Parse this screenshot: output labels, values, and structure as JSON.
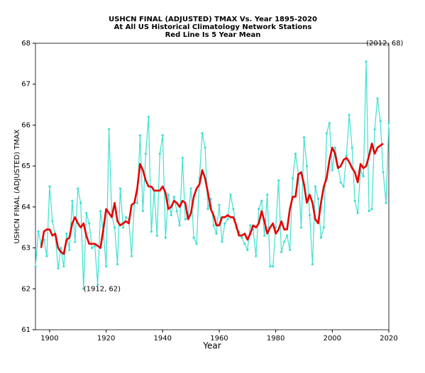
{
  "chart_data": {
    "type": "line",
    "title": [
      "USHCN FINAL (ADJUSTED) TMAX Vs. Year 1895-2020",
      "At All US Historical Climatology Network Stations",
      "Red Line Is 5 Year Mean"
    ],
    "x_label": "Year",
    "y_label": "USHCN FINAL (ADJUSTED) TMAX",
    "xlim": [
      1895,
      2020
    ],
    "ylim": [
      61,
      68
    ],
    "xticks": [
      1900,
      1920,
      1940,
      1960,
      1980,
      2000,
      2020
    ],
    "yticks": [
      61,
      62,
      63,
      64,
      65,
      66,
      67,
      68
    ],
    "x": [
      1895,
      1896,
      1897,
      1898,
      1899,
      1900,
      1901,
      1902,
      1903,
      1904,
      1905,
      1906,
      1907,
      1908,
      1909,
      1910,
      1911,
      1912,
      1913,
      1914,
      1915,
      1916,
      1917,
      1918,
      1919,
      1920,
      1921,
      1922,
      1923,
      1924,
      1925,
      1926,
      1927,
      1928,
      1929,
      1930,
      1931,
      1932,
      1933,
      1934,
      1935,
      1936,
      1937,
      1938,
      1939,
      1940,
      1941,
      1942,
      1943,
      1944,
      1945,
      1946,
      1947,
      1948,
      1949,
      1950,
      1951,
      1952,
      1953,
      1954,
      1955,
      1956,
      1957,
      1958,
      1959,
      1960,
      1961,
      1962,
      1963,
      1964,
      1965,
      1966,
      1967,
      1968,
      1969,
      1970,
      1971,
      1972,
      1973,
      1974,
      1975,
      1976,
      1977,
      1978,
      1979,
      1980,
      1981,
      1982,
      1983,
      1984,
      1985,
      1986,
      1987,
      1988,
      1989,
      1990,
      1991,
      1992,
      1993,
      1994,
      1995,
      1996,
      1997,
      1998,
      1999,
      2000,
      2001,
      2002,
      2003,
      2004,
      2005,
      2006,
      2007,
      2008,
      2009,
      2010,
      2011,
      2012,
      2013,
      2014,
      2015,
      2016,
      2017,
      2018,
      2019,
      2020
    ],
    "series": [
      {
        "color": "#40e0d0",
        "markers": true,
        "values": [
          62.55,
          63.4,
          63.1,
          63.2,
          62.8,
          64.5,
          63.65,
          63.3,
          62.5,
          63.0,
          62.55,
          63.35,
          62.95,
          64.15,
          63.15,
          64.45,
          64.1,
          62.0,
          63.85,
          63.6,
          63.0,
          63.05,
          62.1,
          63.9,
          63.4,
          62.55,
          65.9,
          63.8,
          63.5,
          62.6,
          64.45,
          63.5,
          63.75,
          63.7,
          62.8,
          64.1,
          64.1,
          65.75,
          63.9,
          65.3,
          66.2,
          63.4,
          64.4,
          63.3,
          65.3,
          65.75,
          63.25,
          64.3,
          63.8,
          64.25,
          63.9,
          63.55,
          65.2,
          63.7,
          63.75,
          64.45,
          63.25,
          63.1,
          64.7,
          65.8,
          65.45,
          63.95,
          64.2,
          63.55,
          63.35,
          64.05,
          63.15,
          63.6,
          63.7,
          64.3,
          63.95,
          63.5,
          63.4,
          63.25,
          63.1,
          62.95,
          63.55,
          63.45,
          62.8,
          63.95,
          64.15,
          63.3,
          64.3,
          62.55,
          62.55,
          63.5,
          64.65,
          62.9,
          63.15,
          63.3,
          62.95,
          64.7,
          65.3,
          64.8,
          63.5,
          65.7,
          65.0,
          63.8,
          62.6,
          64.5,
          64.2,
          63.25,
          63.5,
          65.8,
          66.05,
          64.9,
          65.45,
          65.0,
          64.6,
          64.5,
          65.25,
          66.25,
          65.45,
          64.15,
          63.85,
          64.9,
          64.75,
          67.55,
          63.9,
          63.95,
          65.9,
          66.65,
          66.1,
          64.85,
          64.1,
          66.05
        ]
      },
      {
        "color": "#e60000",
        "markers": false,
        "values": [
          null,
          null,
          63.0,
          63.4,
          63.45,
          63.45,
          63.3,
          63.35,
          63.0,
          62.9,
          62.85,
          63.2,
          63.25,
          63.6,
          63.75,
          63.6,
          63.5,
          63.6,
          63.3,
          63.1,
          63.1,
          63.1,
          63.05,
          63.0,
          63.45,
          63.95,
          63.85,
          63.75,
          64.1,
          63.65,
          63.55,
          63.6,
          63.65,
          63.6,
          64.05,
          64.1,
          64.45,
          65.05,
          64.9,
          64.65,
          64.5,
          64.5,
          64.4,
          64.4,
          64.4,
          64.5,
          64.35,
          63.95,
          64.0,
          64.15,
          64.1,
          64.0,
          64.15,
          64.1,
          63.7,
          63.85,
          64.25,
          64.45,
          64.55,
          64.9,
          64.7,
          64.35,
          63.95,
          63.8,
          63.55,
          63.55,
          63.75,
          63.75,
          63.8,
          63.75,
          63.75,
          63.55,
          63.3,
          63.3,
          63.35,
          63.2,
          63.35,
          63.55,
          63.5,
          63.6,
          63.9,
          63.65,
          63.35,
          63.5,
          63.6,
          63.35,
          63.45,
          63.65,
          63.45,
          63.45,
          63.95,
          64.25,
          64.25,
          64.8,
          64.85,
          64.55,
          64.1,
          64.3,
          64.1,
          63.7,
          63.6,
          64.1,
          64.5,
          64.7,
          65.15,
          65.45,
          65.3,
          64.95,
          65.0,
          65.15,
          65.2,
          65.1,
          64.95,
          64.85,
          64.6,
          65.05,
          64.95,
          65.0,
          65.25,
          65.55,
          65.3,
          65.45,
          65.5,
          65.55,
          null,
          null
        ]
      }
    ],
    "annotations": [
      {
        "text": "(1912, 62)",
        "x": 1912,
        "y": 62
      },
      {
        "text": "(2012, 68)",
        "x": 2012,
        "y": 68
      }
    ]
  }
}
